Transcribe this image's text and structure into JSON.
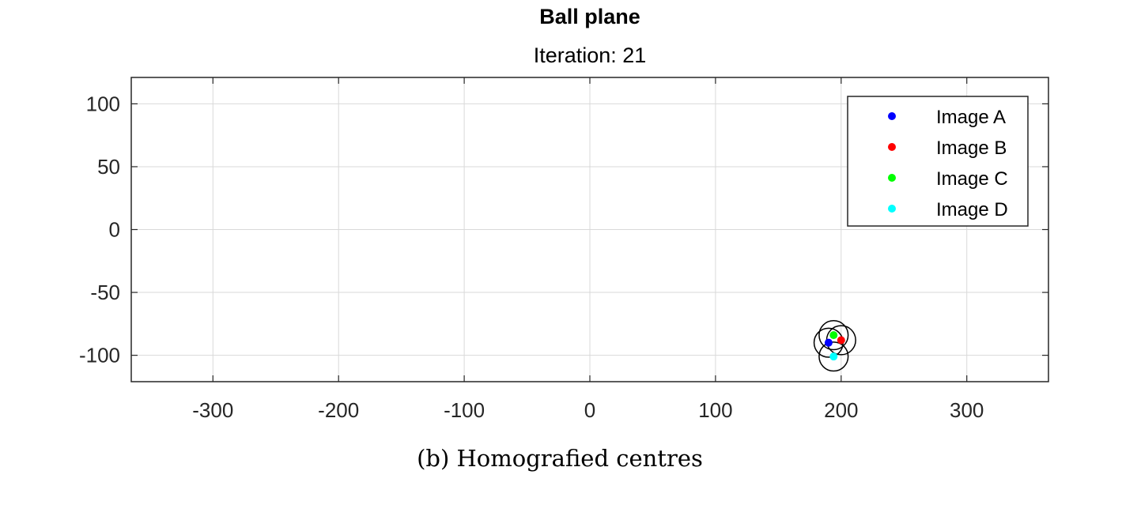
{
  "chart_data": {
    "type": "scatter",
    "title": "Ball plane",
    "subtitle": "Iteration: 21",
    "caption": "(b) Homografied centres",
    "xlim": [
      -365,
      365
    ],
    "ylim": [
      -121,
      121
    ],
    "x_ticks": [
      -300,
      -200,
      -100,
      0,
      100,
      200,
      300
    ],
    "y_ticks": [
      100,
      50,
      0,
      -50,
      -100
    ],
    "x_tick_labels": [
      "-300",
      "-200",
      "-100",
      "0",
      "100",
      "200",
      "300"
    ],
    "y_tick_labels": [
      "100",
      "50",
      "0",
      "-50",
      "-100"
    ],
    "grid": true,
    "legend_position": "top-right",
    "series": [
      {
        "name": "Image A",
        "color": "#0000ff",
        "points": [
          [
            190,
            -90
          ]
        ]
      },
      {
        "name": "Image B",
        "color": "#ff0000",
        "points": [
          [
            200,
            -88
          ]
        ]
      },
      {
        "name": "Image C",
        "color": "#00ff00",
        "points": [
          [
            194,
            -84
          ]
        ]
      },
      {
        "name": "Image D",
        "color": "#00ffff",
        "points": [
          [
            194,
            -101
          ]
        ]
      }
    ],
    "circles": [
      {
        "center": [
          190,
          -90
        ],
        "radius": 11
      },
      {
        "center": [
          200,
          -88
        ],
        "radius": 11
      },
      {
        "center": [
          194,
          -84
        ],
        "radius": 11
      },
      {
        "center": [
          194,
          -101
        ],
        "radius": 11
      }
    ]
  }
}
